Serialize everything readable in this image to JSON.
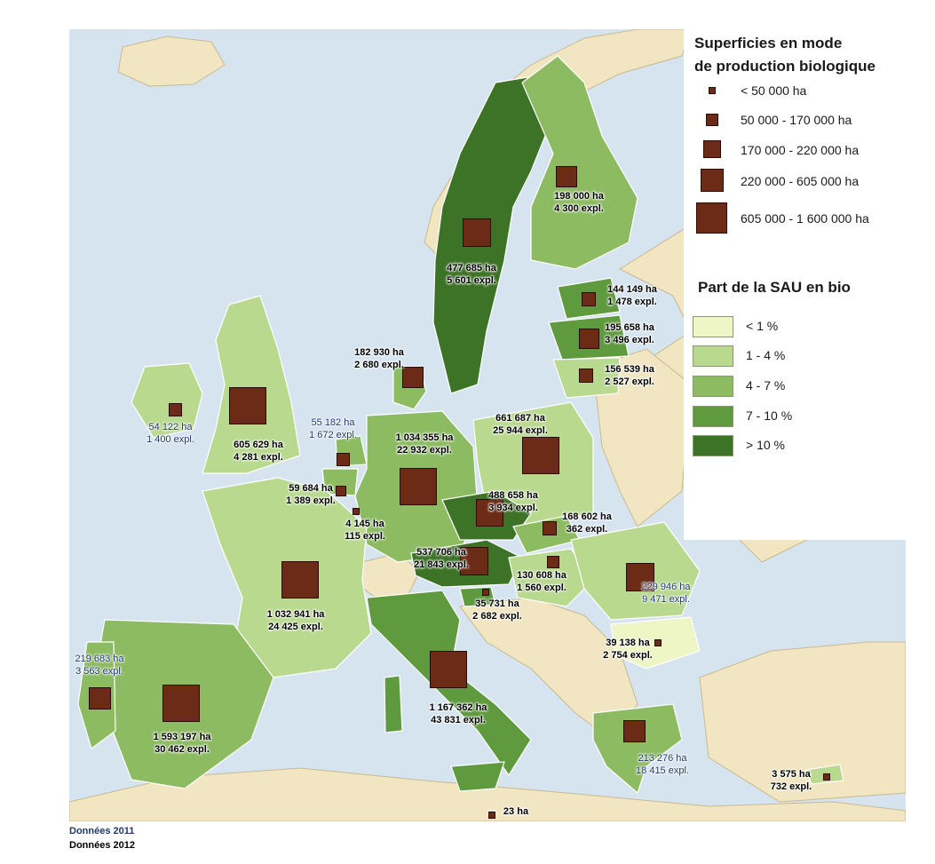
{
  "legend": {
    "size_title_line1": "Superficies en mode",
    "size_title_line2": "de production biologique",
    "size_classes": [
      {
        "label": "< 50 000 ha"
      },
      {
        "label": "50 000 - 170 000 ha"
      },
      {
        "label": "170 000 - 220 000 ha"
      },
      {
        "label": "220 000 - 605 000 ha"
      },
      {
        "label": "605 000 - 1 600 000 ha"
      }
    ],
    "share_title": "Part de la SAU en bio",
    "share_classes": [
      {
        "label": "< 1 %",
        "color": "#eef6c6"
      },
      {
        "label": "1 - 4 %",
        "color": "#b9d98f"
      },
      {
        "label": "4 - 7  %",
        "color": "#8dbb62"
      },
      {
        "label": "7 - 10 %",
        "color": "#5f9a3e"
      },
      {
        "label": "> 10 %",
        "color": "#3d7326"
      }
    ]
  },
  "countries": [
    {
      "name": "sweden",
      "area": "477 685 ha",
      "farms": "5 601 expl.",
      "year": "2012"
    },
    {
      "name": "finland",
      "area": "198 000 ha",
      "farms": "4 300 expl.",
      "year": "2012"
    },
    {
      "name": "estonia",
      "area": "144 149 ha",
      "farms": "1 478 expl.",
      "year": "2012"
    },
    {
      "name": "latvia",
      "area": "195 658 ha",
      "farms": "3 496 expl.",
      "year": "2012"
    },
    {
      "name": "lithuania",
      "area": "156 539 ha",
      "farms": "2 527 expl.",
      "year": "2012"
    },
    {
      "name": "denmark",
      "area": "182 930 ha",
      "farms": "2 680 expl.",
      "year": "2012"
    },
    {
      "name": "ireland",
      "area": "54 122 ha",
      "farms": "1 400 expl.",
      "year": "2011"
    },
    {
      "name": "united-kingdom",
      "area": "605 629 ha",
      "farms": "4 281 expl.",
      "year": "2012"
    },
    {
      "name": "netherlands",
      "area": "55 182 ha",
      "farms": "1 672 expl.",
      "year": "2011"
    },
    {
      "name": "germany",
      "area": "1 034 355 ha",
      "farms": "22 932 expl.",
      "year": "2012"
    },
    {
      "name": "poland",
      "area": "661 687 ha",
      "farms": "25 944 expl.",
      "year": "2012"
    },
    {
      "name": "belgium",
      "area": "59 684 ha",
      "farms": "1 389 expl.",
      "year": "2012"
    },
    {
      "name": "luxembourg",
      "area": "4 145 ha",
      "farms": "115 expl.",
      "year": "2012"
    },
    {
      "name": "czech-republic",
      "area": "488 658 ha",
      "farms": "3 934 expl.",
      "year": "2012"
    },
    {
      "name": "slovakia",
      "area": "168 602 ha",
      "farms": "362 expl.",
      "year": "2012"
    },
    {
      "name": "austria",
      "area": "537 706 ha",
      "farms": "21 843 expl.",
      "year": "2012"
    },
    {
      "name": "hungary",
      "area": "130 608 ha",
      "farms": "1 560 expl.",
      "year": "2012"
    },
    {
      "name": "slovenia",
      "area": "35 731 ha",
      "farms": "2 682 expl.",
      "year": "2012"
    },
    {
      "name": "romania",
      "area": "229 946 ha",
      "farms": "9 471 expl.",
      "year": "2011"
    },
    {
      "name": "france",
      "area": "1 032 941 ha",
      "farms": "24 425 expl.",
      "year": "2012"
    },
    {
      "name": "bulgaria",
      "area": "39 138 ha",
      "farms": "2 754 expl.",
      "year": "2012"
    },
    {
      "name": "portugal",
      "area": "219 683 ha",
      "farms": "3 563 expl.",
      "year": "2011"
    },
    {
      "name": "spain",
      "area": "1 593 197 ha",
      "farms": "30 462 expl.",
      "year": "2012"
    },
    {
      "name": "italy",
      "area": "1 167 362 ha",
      "farms": "43 831 expl.",
      "year": "2012"
    },
    {
      "name": "greece",
      "area": "213 276 ha",
      "farms": "18 415 expl.",
      "year": "2011"
    },
    {
      "name": "cyprus",
      "area": "3 575 ha",
      "farms": "732 expl.",
      "year": "2012"
    },
    {
      "name": "malta",
      "area": "23 ha",
      "farms": "",
      "year": "2012"
    }
  ],
  "footer": {
    "line1": "Données 2011",
    "line2": "Données 2012",
    "color_2011": "#1f3b6b",
    "color_2012": "#000000"
  },
  "colors": {
    "sea": "#d6e4f0",
    "non_eu_land": "#f2e5c2",
    "square_fill": "#6b2b17"
  }
}
